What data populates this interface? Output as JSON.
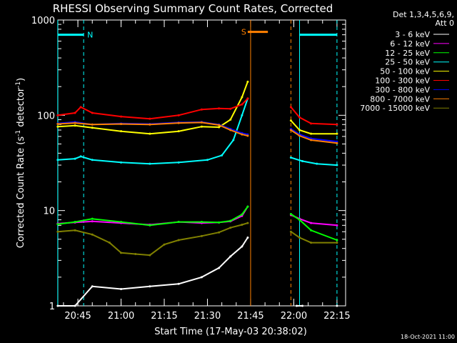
{
  "chart_data": {
    "type": "line",
    "title": "RHESSI Observing Summary Count Rates, Corrected",
    "xlabel": "Start Time (17-May-03 20:38:02)",
    "ylabel": "Corrected Count Rate (s",
    "ylabel_sup1": "-1",
    "ylabel_mid": " detector",
    "ylabel_sup2": "-1",
    "ylabel_end": ")",
    "yscale": "log",
    "ylim": [
      1,
      1000
    ],
    "xlim": [
      "20:38:02",
      "22:18:00"
    ],
    "x_ticks": [
      "20:45",
      "21:00",
      "21:15",
      "21:30",
      "21:45",
      "22:00",
      "22:15"
    ],
    "y_ticks": [
      "1",
      "10",
      "100",
      "1000"
    ],
    "grid": false,
    "legend_position": "right",
    "legend_header": [
      "Det 1,3,4,5,6,9,",
      "Att 0"
    ],
    "footer_date": "18-Oct-2021 11:00",
    "series": [
      {
        "name": "3 - 6 keV",
        "color": "#ffffff",
        "x": [
          "20:38",
          "20:44",
          "20:50",
          "21:00",
          "21:10",
          "21:20",
          "21:28",
          "21:34",
          "21:38",
          "21:42",
          "21:44",
          "22:01",
          "22:03",
          "22:15"
        ],
        "values": [
          1.0,
          1.0,
          1.6,
          1.5,
          1.6,
          1.7,
          2.0,
          2.5,
          3.3,
          4.2,
          5.2,
          1.0,
          1.0,
          1.0
        ]
      },
      {
        "name": "6 - 12 keV",
        "color": "#ff00ff",
        "x": [
          "20:38",
          "20:44",
          "20:50",
          "21:00",
          "21:10",
          "21:20",
          "21:28",
          "21:34",
          "21:38",
          "21:42",
          "21:44",
          "21:59",
          "22:02",
          "22:06",
          "22:15"
        ],
        "values": [
          7.3,
          7.5,
          7.7,
          7.4,
          7.1,
          7.6,
          7.4,
          7.5,
          7.7,
          8.8,
          11.0,
          9.0,
          8.2,
          7.4,
          7.0
        ]
      },
      {
        "name": "12 - 25 keV",
        "color": "#00ff00",
        "x": [
          "20:38",
          "20:44",
          "20:50",
          "21:00",
          "21:10",
          "21:20",
          "21:28",
          "21:34",
          "21:38",
          "21:42",
          "21:44",
          "21:59",
          "22:02",
          "22:06",
          "22:15"
        ],
        "values": [
          7.2,
          7.6,
          8.2,
          7.6,
          7.0,
          7.6,
          7.6,
          7.5,
          7.8,
          9.1,
          11.0,
          9.2,
          8.0,
          6.2,
          4.9
        ]
      },
      {
        "name": "25 - 50 keV",
        "color": "#00ffff",
        "x": [
          "20:38",
          "20:44",
          "20:46",
          "20:50",
          "21:00",
          "21:10",
          "21:20",
          "21:30",
          "21:35",
          "21:39",
          "21:42",
          "21:44",
          "21:59",
          "22:03",
          "22:08",
          "22:15"
        ],
        "values": [
          34,
          35,
          37,
          34,
          32,
          31,
          32,
          34,
          38,
          55,
          100,
          150,
          36,
          33,
          31,
          30
        ]
      },
      {
        "name": "50 - 100 keV",
        "color": "#ffff00",
        "x": [
          "20:38",
          "20:44",
          "20:50",
          "21:00",
          "21:10",
          "21:20",
          "21:28",
          "21:34",
          "21:38",
          "21:42",
          "21:44",
          "21:59",
          "22:02",
          "22:06",
          "22:15"
        ],
        "values": [
          76,
          78,
          74,
          68,
          64,
          68,
          76,
          75,
          90,
          155,
          225,
          88,
          70,
          64,
          64
        ]
      },
      {
        "name": "100 - 300 keV",
        "color": "#ff0000",
        "x": [
          "20:38",
          "20:44",
          "20:46",
          "20:50",
          "21:00",
          "21:10",
          "21:20",
          "21:28",
          "21:34",
          "21:38",
          "21:42",
          "21:44",
          "21:59",
          "22:02",
          "22:06",
          "22:15"
        ],
        "values": [
          100,
          106,
          122,
          106,
          97,
          92,
          100,
          115,
          118,
          117,
          130,
          150,
          122,
          95,
          82,
          80
        ]
      },
      {
        "name": "300 - 800 keV",
        "color": "#0000ff",
        "x": [
          "20:38",
          "20:44",
          "20:50",
          "21:00",
          "21:10",
          "21:20",
          "21:28",
          "21:34",
          "21:38",
          "21:42",
          "21:44",
          "21:59",
          "22:02",
          "22:06",
          "22:15"
        ],
        "values": [
          82,
          85,
          80,
          82,
          81,
          84,
          85,
          80,
          72,
          65,
          63,
          72,
          63,
          57,
          53
        ]
      },
      {
        "name": "800 - 7000 keV",
        "color": "#ff8000",
        "x": [
          "20:38",
          "20:44",
          "20:50",
          "21:00",
          "21:10",
          "21:20",
          "21:28",
          "21:34",
          "21:38",
          "21:42",
          "21:44",
          "21:59",
          "22:02",
          "22:06",
          "22:15"
        ],
        "values": [
          81,
          83,
          80,
          81,
          80,
          83,
          84,
          79,
          70,
          63,
          61,
          70,
          61,
          55,
          51
        ]
      },
      {
        "name": "7000 - 15000 keV",
        "color": "#808000",
        "x": [
          "20:38",
          "20:44",
          "20:50",
          "20:56",
          "21:00",
          "21:05",
          "21:10",
          "21:15",
          "21:20",
          "21:28",
          "21:34",
          "21:38",
          "21:42",
          "21:44",
          "21:59",
          "22:02",
          "22:06",
          "22:15"
        ],
        "values": [
          6.0,
          6.2,
          5.6,
          4.6,
          3.6,
          3.5,
          3.4,
          4.4,
          4.9,
          5.4,
          5.9,
          6.6,
          7.1,
          7.4,
          6.0,
          5.2,
          4.6,
          4.6
        ]
      }
    ],
    "intervals": [
      {
        "label": "N",
        "color": "#00ffff",
        "y": 700,
        "segments": [
          [
            "20:38",
            "20:47"
          ],
          [
            "22:02",
            "22:15"
          ]
        ],
        "dashed": [
          "20:47",
          "22:15"
        ],
        "solid": [
          "20:38",
          "22:02"
        ]
      },
      {
        "label": "S",
        "color": "#ff8000",
        "y": 750,
        "segments": [
          [
            "21:44",
            "21:51"
          ]
        ],
        "dashed": [
          "21:59"
        ],
        "solid": [
          "21:45"
        ]
      }
    ]
  }
}
